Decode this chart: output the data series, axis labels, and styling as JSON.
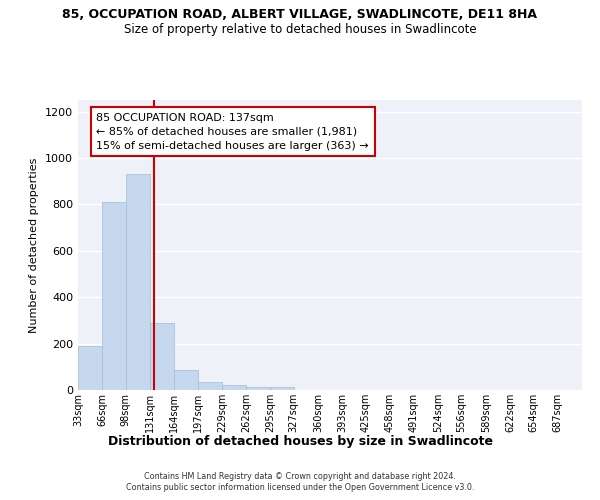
{
  "title1": "85, OCCUPATION ROAD, ALBERT VILLAGE, SWADLINCOTE, DE11 8HA",
  "title2": "Size of property relative to detached houses in Swadlincote",
  "xlabel": "Distribution of detached houses by size in Swadlincote",
  "ylabel": "Number of detached properties",
  "annotation_line1": "85 OCCUPATION ROAD: 137sqm",
  "annotation_line2": "← 85% of detached houses are smaller (1,981)",
  "annotation_line3": "15% of semi-detached houses are larger (363) →",
  "footer1": "Contains HM Land Registry data © Crown copyright and database right 2024.",
  "footer2": "Contains public sector information licensed under the Open Government Licence v3.0.",
  "bar_left_edges": [
    33,
    66,
    98,
    131,
    164,
    197,
    229,
    262,
    295,
    327,
    360,
    393,
    425,
    458,
    491,
    524,
    556,
    589,
    622,
    654
  ],
  "bar_widths": [
    33,
    32,
    33,
    33,
    33,
    32,
    33,
    33,
    33,
    33,
    33,
    32,
    33,
    33,
    33,
    32,
    33,
    33,
    32,
    33
  ],
  "bar_heights": [
    190,
    810,
    930,
    290,
    85,
    35,
    20,
    15,
    12,
    0,
    0,
    0,
    0,
    0,
    0,
    0,
    0,
    0,
    0,
    0
  ],
  "bar_color": "#c5d8ed",
  "bar_edgecolor": "#a0bcd8",
  "property_size": 137,
  "red_line_color": "#cc0000",
  "ylim": [
    0,
    1250
  ],
  "yticks": [
    0,
    200,
    400,
    600,
    800,
    1000,
    1200
  ],
  "tick_labels": [
    "33sqm",
    "66sqm",
    "98sqm",
    "131sqm",
    "164sqm",
    "197sqm",
    "229sqm",
    "262sqm",
    "295sqm",
    "327sqm",
    "360sqm",
    "393sqm",
    "425sqm",
    "458sqm",
    "491sqm",
    "524sqm",
    "556sqm",
    "589sqm",
    "622sqm",
    "654sqm",
    "687sqm"
  ],
  "background_color": "#eef2f8",
  "grid_color": "#ffffff",
  "annotation_box_color": "#ffffff",
  "annotation_box_edgecolor": "#cc0000",
  "xlim_left": 33,
  "xlim_right": 720
}
